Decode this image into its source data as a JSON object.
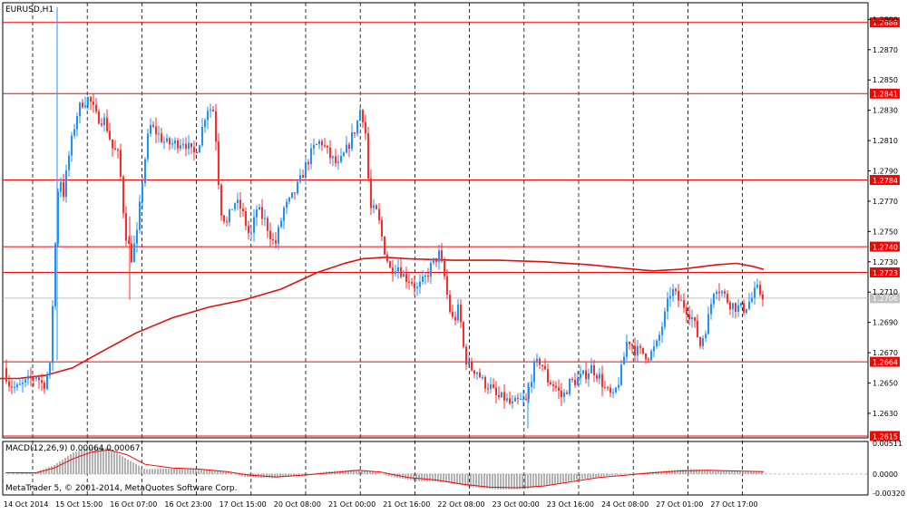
{
  "window": {
    "symbol_label": "EURUSD,H1",
    "watermark": "MetaTrader 5, © 2001-2014, MetaQuotes Software Corp."
  },
  "colors": {
    "bull": "#1e90ff",
    "bear": "#ff2a2a",
    "level_line": "#ff0000",
    "ma_line": "#dd1111",
    "grid": "#000000",
    "macd_hist": "#808080",
    "macd_signal": "#ff0000",
    "current_price_line": "#c0c0c0"
  },
  "chart_data": [
    {
      "type": "candlestick",
      "title": "EURUSD,H1",
      "ylim": [
        1.2615,
        1.2898
      ],
      "y_ticks": [
        "1.2890",
        "1.2870",
        "1.2850",
        "1.2830",
        "1.2810",
        "1.2790",
        "1.2770",
        "1.2750",
        "1.2730",
        "1.2710",
        "1.2690",
        "1.2670",
        "1.2650",
        "1.2630"
      ],
      "x_ticks": [
        "14 Oct 2014",
        "15 Oct 15:00",
        "16 Oct 07:00",
        "16 Oct 23:00",
        "17 Oct 15:00",
        "20 Oct 08:00",
        "21 Oct 00:00",
        "21 Oct 16:00",
        "22 Oct 08:00",
        "23 Oct 00:00",
        "23 Oct 16:00",
        "24 Oct 08:00",
        "27 Oct 01:00",
        "27 Oct 17:00"
      ],
      "levels": [
        {
          "price": 1.2888,
          "label": "1.2888"
        },
        {
          "price": 1.2841,
          "label": "1.2841"
        },
        {
          "price": 1.2784,
          "label": "1.2784"
        },
        {
          "price": 1.274,
          "label": "1.2740"
        },
        {
          "price": 1.2723,
          "label": "1.2723"
        },
        {
          "price": 1.2664,
          "label": "1.2664"
        },
        {
          "price": 1.2615,
          "label": "1.2615"
        }
      ],
      "current_price": {
        "price": 1.2706,
        "label": "1.2706"
      },
      "grid": true,
      "vertical_separators": 14,
      "moving_average": [
        [
          0,
          1.2653
        ],
        [
          20,
          1.2653
        ],
        [
          50,
          1.2655
        ],
        [
          80,
          1.266
        ],
        [
          110,
          1.267
        ],
        [
          150,
          1.2683
        ],
        [
          190,
          1.2693
        ],
        [
          230,
          1.27
        ],
        [
          270,
          1.2705
        ],
        [
          310,
          1.2712
        ],
        [
          350,
          1.2723
        ],
        [
          380,
          1.2729
        ],
        [
          400,
          1.2732
        ],
        [
          425,
          1.2733
        ],
        [
          450,
          1.2732
        ],
        [
          500,
          1.2731
        ],
        [
          550,
          1.2731
        ],
        [
          600,
          1.273
        ],
        [
          650,
          1.2728
        ],
        [
          700,
          1.2725
        ],
        [
          720,
          1.2724
        ],
        [
          750,
          1.2725
        ],
        [
          790,
          1.2728
        ],
        [
          812,
          1.2729
        ],
        [
          830,
          1.2727
        ],
        [
          842,
          1.2725
        ]
      ],
      "candle_x_range": [
        6,
        842
      ],
      "candle_anchors": [
        [
          6,
          1.266
        ],
        [
          12,
          1.265
        ],
        [
          20,
          1.2646
        ],
        [
          30,
          1.265
        ],
        [
          42,
          1.2655
        ],
        [
          50,
          1.2648
        ],
        [
          57,
          1.266
        ],
        [
          62,
          1.273
        ],
        [
          67,
          1.279
        ],
        [
          72,
          1.2775
        ],
        [
          78,
          1.28
        ],
        [
          86,
          1.2826
        ],
        [
          92,
          1.2835
        ],
        [
          100,
          1.2838
        ],
        [
          108,
          1.2826
        ],
        [
          118,
          1.2823
        ],
        [
          126,
          1.2805
        ],
        [
          133,
          1.28
        ],
        [
          140,
          1.275
        ],
        [
          147,
          1.2733
        ],
        [
          153,
          1.2748
        ],
        [
          160,
          1.279
        ],
        [
          167,
          1.282
        ],
        [
          175,
          1.2815
        ],
        [
          185,
          1.2808
        ],
        [
          195,
          1.2808
        ],
        [
          205,
          1.281
        ],
        [
          215,
          1.28
        ],
        [
          222,
          1.281
        ],
        [
          230,
          1.2832
        ],
        [
          238,
          1.283
        ],
        [
          245,
          1.2765
        ],
        [
          252,
          1.2755
        ],
        [
          260,
          1.277
        ],
        [
          268,
          1.2765
        ],
        [
          278,
          1.2745
        ],
        [
          285,
          1.2765
        ],
        [
          295,
          1.2756
        ],
        [
          305,
          1.274
        ],
        [
          315,
          1.2765
        ],
        [
          322,
          1.277
        ],
        [
          332,
          1.2782
        ],
        [
          340,
          1.2795
        ],
        [
          348,
          1.2805
        ],
        [
          356,
          1.281
        ],
        [
          365,
          1.28
        ],
        [
          375,
          1.2793
        ],
        [
          385,
          1.2805
        ],
        [
          395,
          1.282
        ],
        [
          400,
          1.2833
        ],
        [
          405,
          1.2815
        ],
        [
          410,
          1.2765
        ],
        [
          418,
          1.2762
        ],
        [
          425,
          1.274
        ],
        [
          432,
          1.2725
        ],
        [
          440,
          1.2728
        ],
        [
          448,
          1.272
        ],
        [
          455,
          1.2718
        ],
        [
          462,
          1.2712
        ],
        [
          470,
          1.2718
        ],
        [
          478,
          1.2728
        ],
        [
          486,
          1.2735
        ],
        [
          492,
          1.272
        ],
        [
          497,
          1.27
        ],
        [
          502,
          1.269
        ],
        [
          508,
          1.27
        ],
        [
          514,
          1.2668
        ],
        [
          520,
          1.266
        ],
        [
          528,
          1.2658
        ],
        [
          535,
          1.265
        ],
        [
          542,
          1.2648
        ],
        [
          550,
          1.264
        ],
        [
          558,
          1.264
        ],
        [
          566,
          1.2635
        ],
        [
          574,
          1.2638
        ],
        [
          582,
          1.2638
        ],
        [
          590,
          1.266
        ],
        [
          598,
          1.2665
        ],
        [
          606,
          1.2652
        ],
        [
          614,
          1.2648
        ],
        [
          622,
          1.264
        ],
        [
          630,
          1.265
        ],
        [
          638,
          1.2652
        ],
        [
          646,
          1.2655
        ],
        [
          654,
          1.266
        ],
        [
          662,
          1.2655
        ],
        [
          670,
          1.2645
        ],
        [
          678,
          1.264
        ],
        [
          686,
          1.2655
        ],
        [
          694,
          1.268
        ],
        [
          702,
          1.2672
        ],
        [
          710,
          1.267
        ],
        [
          718,
          1.2668
        ],
        [
          726,
          1.2675
        ],
        [
          734,
          1.2692
        ],
        [
          742,
          1.2712
        ],
        [
          750,
          1.2705
        ],
        [
          758,
          1.27
        ],
        [
          766,
          1.2692
        ],
        [
          774,
          1.2675
        ],
        [
          782,
          1.269
        ],
        [
          790,
          1.2715
        ],
        [
          798,
          1.271
        ],
        [
          806,
          1.2703
        ],
        [
          814,
          1.27
        ],
        [
          822,
          1.2699
        ],
        [
          830,
          1.2705
        ],
        [
          836,
          1.2712
        ],
        [
          842,
          1.2708
        ]
      ]
    },
    {
      "type": "macd",
      "title": "MACD(12,26,9) 0.00064 0.00067",
      "indicator_label": "MACD(12,26,9)",
      "values_label": "0.00064 0.00067",
      "ylim": [
        -0.0032,
        0.00511
      ],
      "y_ticks": [
        "0.00511",
        "0.0000",
        "-0.00320"
      ],
      "hist_anchors": [
        [
          6,
          0.0
        ],
        [
          40,
          0.0003
        ],
        [
          60,
          0.0015
        ],
        [
          80,
          0.0035
        ],
        [
          100,
          0.0045
        ],
        [
          120,
          0.0043
        ],
        [
          140,
          0.0025
        ],
        [
          160,
          0.0008
        ],
        [
          190,
          0.0009
        ],
        [
          220,
          0.0008
        ],
        [
          250,
          0.0004
        ],
        [
          270,
          -0.0005
        ],
        [
          300,
          -0.0007
        ],
        [
          330,
          -0.0003
        ],
        [
          360,
          0.0004
        ],
        [
          390,
          0.0007
        ],
        [
          410,
          0.0004
        ],
        [
          430,
          -0.0004
        ],
        [
          460,
          -0.0012
        ],
        [
          490,
          -0.0013
        ],
        [
          520,
          -0.0022
        ],
        [
          550,
          -0.0026
        ],
        [
          580,
          -0.0025
        ],
        [
          610,
          -0.0017
        ],
        [
          640,
          -0.0009
        ],
        [
          670,
          -0.0003
        ],
        [
          700,
          0.0001
        ],
        [
          730,
          0.0005
        ],
        [
          760,
          0.0008
        ],
        [
          790,
          0.0006
        ],
        [
          820,
          0.0005
        ],
        [
          842,
          0.0004
        ]
      ],
      "signal_anchors": [
        [
          6,
          0.0002
        ],
        [
          40,
          0.0002
        ],
        [
          60,
          0.001
        ],
        [
          80,
          0.0025
        ],
        [
          100,
          0.0036
        ],
        [
          120,
          0.004
        ],
        [
          140,
          0.0032
        ],
        [
          160,
          0.0016
        ],
        [
          190,
          0.001
        ],
        [
          220,
          0.0008
        ],
        [
          250,
          0.0004
        ],
        [
          275,
          -0.0002
        ],
        [
          305,
          -0.0005
        ],
        [
          335,
          -0.0002
        ],
        [
          365,
          0.0002
        ],
        [
          395,
          0.0006
        ],
        [
          420,
          0.0003
        ],
        [
          450,
          -0.0006
        ],
        [
          480,
          -0.001
        ],
        [
          510,
          -0.0017
        ],
        [
          540,
          -0.0022
        ],
        [
          570,
          -0.0023
        ],
        [
          600,
          -0.002
        ],
        [
          630,
          -0.0013
        ],
        [
          660,
          -0.0006
        ],
        [
          690,
          -0.0002
        ],
        [
          720,
          0.0002
        ],
        [
          750,
          0.0005
        ],
        [
          780,
          0.0006
        ],
        [
          810,
          0.0005
        ],
        [
          842,
          0.0004
        ]
      ]
    }
  ]
}
